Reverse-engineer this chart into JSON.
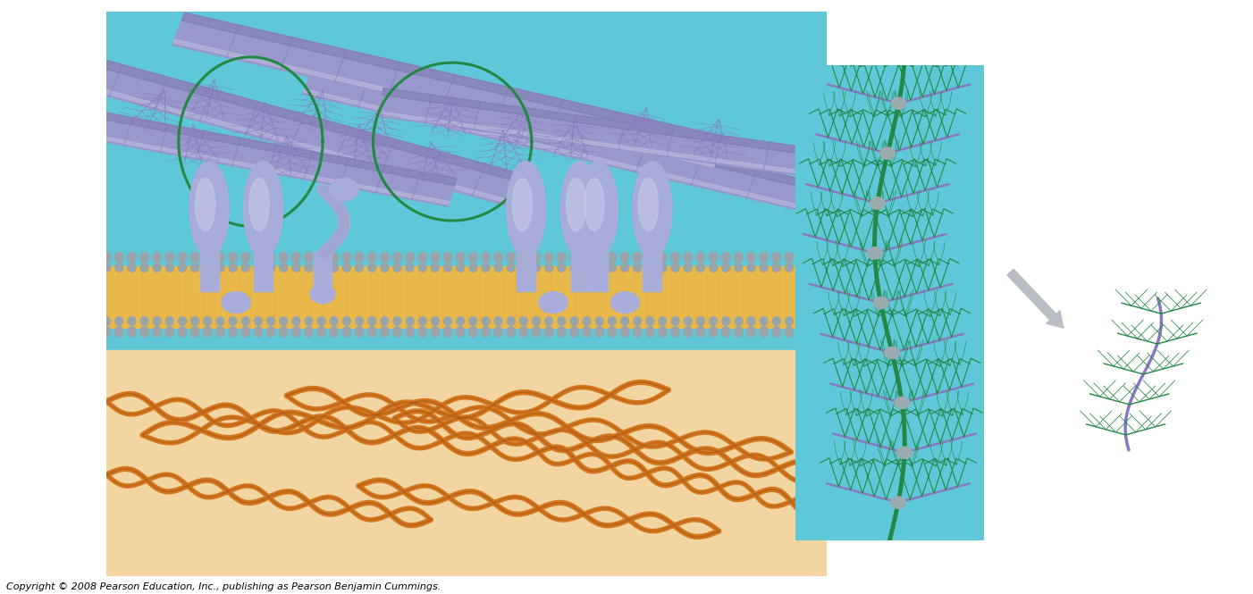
{
  "copyright_text": "Copyright © 2008 Pearson Education, Inc., publishing as Pearson Benjamin Cummings.",
  "copyright_fontsize": 8,
  "fig_width": 14.02,
  "fig_height": 6.65,
  "bg_color": "#ffffff",
  "colors": {
    "sky": "#5ec8d8",
    "peach": "#f2d5a0",
    "membrane_yellow": "#e8b84b",
    "membrane_gray": "#9aa4a8",
    "collagen": "#9898cc",
    "collagen_light": "#c0c0e0",
    "collagen_dark": "#7070a8",
    "fibronectin": "#d47820",
    "fibronectin_dark": "#a05010",
    "protein_fill": "#a8acd8",
    "protein_light": "#c8ccee",
    "protein_dark": "#8890b8",
    "green": "#228844",
    "purple": "#8878c0",
    "gray_arrow": "#b8bec4"
  }
}
